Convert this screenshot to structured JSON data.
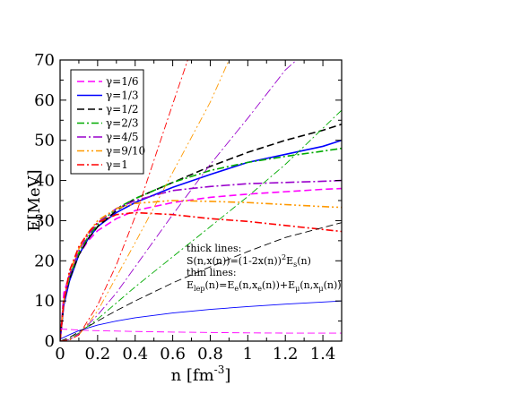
{
  "chart_data": {
    "type": "line",
    "xlabel": "n [fm",
    "xlabel_sup": "-3",
    "xlabel_end": "]",
    "ylabel": "E[MeV]",
    "xlim": [
      0,
      1.5
    ],
    "ylim": [
      0,
      70
    ],
    "xticks": [
      0,
      0.2,
      0.4,
      0.6,
      0.8,
      1,
      1.2,
      1.4
    ],
    "xtick_labels": [
      "0",
      "0.2",
      "0.4",
      "0.6",
      "0.8",
      "1",
      "1.2",
      "1.4"
    ],
    "yticks": [
      0,
      10,
      20,
      30,
      40,
      50,
      60,
      70
    ],
    "ytick_labels": [
      "0",
      "10",
      "20",
      "30",
      "40",
      "50",
      "60",
      "70"
    ],
    "grid": false,
    "legend_position": "top-left",
    "legend": [
      {
        "label": "γ=1/6",
        "color": "#ff00ff",
        "dash": "8,4"
      },
      {
        "label": "γ=1/3",
        "color": "#0000ff",
        "dash": ""
      },
      {
        "label": "γ=1/2",
        "color": "#000000",
        "dash": "8,4"
      },
      {
        "label": "γ=2/3",
        "color": "#00aa00",
        "dash": "8,3,2,3"
      },
      {
        "label": "γ=4/5",
        "color": "#9900cc",
        "dash": "10,3,2,3"
      },
      {
        "label": "γ=9/10",
        "color": "#ff9900",
        "dash": "8,3,2,3,2,3"
      },
      {
        "label": "γ=1",
        "color": "#ff0000",
        "dash": "8,3,2,3"
      }
    ],
    "annotation": {
      "line1": "thick lines:",
      "line2a": "S(n,x(n))=(1-2x(n))",
      "line2b": "2",
      "line2c": "E",
      "line2d": "s",
      "line2e": "(n)",
      "line3": "thin lines:",
      "line4a": "E",
      "line4b": "lep",
      "line4c": "(n)=E",
      "line4d": "e",
      "line4e": "(n,x",
      "line4f": "e",
      "line4g": "(n))+E",
      "line4h": "μ",
      "line4i": "(n,x",
      "line4j": "μ",
      "line4k": "(n))"
    },
    "series": [
      {
        "name": "γ=1/6",
        "kind": "thick",
        "color": "#ff00ff",
        "dash": "8,4",
        "x": [
          0,
          0.02,
          0.05,
          0.1,
          0.15,
          0.2,
          0.3,
          0.4,
          0.6,
          0.8,
          1.0,
          1.2,
          1.4,
          1.5
        ],
        "y": [
          0,
          12,
          16.5,
          21.5,
          25,
          27.5,
          30.5,
          32.5,
          34.5,
          35.8,
          36.6,
          37.2,
          37.8,
          38
        ]
      },
      {
        "name": "γ=1/3",
        "kind": "thick",
        "color": "#0000ff",
        "dash": "",
        "x": [
          0,
          0.02,
          0.05,
          0.1,
          0.15,
          0.2,
          0.3,
          0.4,
          0.6,
          0.8,
          1.0,
          1.2,
          1.4,
          1.5
        ],
        "y": [
          0,
          9,
          15,
          21.5,
          25.5,
          28.5,
          32,
          34.5,
          38.3,
          41.5,
          44.5,
          46.5,
          48.5,
          50
        ]
      },
      {
        "name": "γ=1/2",
        "kind": "thick",
        "color": "#000000",
        "dash": "8,4",
        "x": [
          0,
          0.02,
          0.05,
          0.1,
          0.15,
          0.2,
          0.3,
          0.4,
          0.6,
          0.8,
          1.0,
          1.2,
          1.4,
          1.5
        ],
        "y": [
          0,
          10,
          15.5,
          21.5,
          25.5,
          28.5,
          32.5,
          35.5,
          39.5,
          43.5,
          47,
          50,
          52.5,
          54
        ]
      },
      {
        "name": "γ=2/3",
        "kind": "thick",
        "color": "#00aa00",
        "dash": "8,3,2,3",
        "x": [
          0,
          0.02,
          0.05,
          0.1,
          0.15,
          0.2,
          0.3,
          0.4,
          0.6,
          0.8,
          1.0,
          1.2,
          1.4,
          1.5
        ],
        "y": [
          0,
          10,
          16,
          22,
          26,
          29,
          33,
          35.5,
          39.5,
          42.5,
          44.5,
          46,
          47.3,
          48
        ]
      },
      {
        "name": "γ=4/5",
        "kind": "thick",
        "color": "#9900cc",
        "dash": "10,3,2,3",
        "x": [
          0,
          0.02,
          0.05,
          0.1,
          0.15,
          0.2,
          0.3,
          0.4,
          0.6,
          0.8,
          1.0,
          1.2,
          1.4,
          1.5
        ],
        "y": [
          0,
          10,
          16.5,
          22.5,
          26.5,
          29.5,
          33,
          35,
          37.5,
          38.5,
          39.2,
          39.5,
          39.8,
          40
        ]
      },
      {
        "name": "γ=9/10",
        "kind": "thick",
        "color": "#ff9900",
        "dash": "8,3,2,3,2,3",
        "x": [
          0,
          0.02,
          0.05,
          0.1,
          0.15,
          0.2,
          0.3,
          0.4,
          0.6,
          0.8,
          1.0,
          1.2,
          1.4,
          1.5
        ],
        "y": [
          0,
          10,
          17,
          23,
          27,
          30,
          33,
          34.3,
          35,
          34.8,
          34.5,
          34,
          33.5,
          33.3
        ]
      },
      {
        "name": "γ=1",
        "kind": "thick",
        "color": "#ff0000",
        "dash": "8,3,2,3",
        "x": [
          0,
          0.02,
          0.05,
          0.1,
          0.15,
          0.2,
          0.3,
          0.4,
          0.6,
          0.8,
          1.0,
          1.2,
          1.4,
          1.5
        ],
        "y": [
          0,
          10,
          17.5,
          23.5,
          27,
          29.5,
          31.5,
          32,
          31.5,
          30.5,
          29.8,
          28.8,
          27.8,
          27.3
        ]
      },
      {
        "name": "γ=1/6",
        "kind": "thin",
        "color": "#ff00ff",
        "dash": "8,4",
        "x": [
          0,
          0.05,
          0.1,
          0.2,
          0.4,
          0.6,
          0.8,
          1.0,
          1.2,
          1.5
        ],
        "y": [
          3.0,
          2.9,
          2.75,
          2.6,
          2.4,
          2.25,
          2.15,
          2.05,
          2.0,
          2.0
        ]
      },
      {
        "name": "γ=1/3",
        "kind": "thin",
        "color": "#0000ff",
        "dash": "",
        "x": [
          0,
          0.05,
          0.1,
          0.2,
          0.3,
          0.4,
          0.6,
          0.8,
          1.0,
          1.2,
          1.5
        ],
        "y": [
          0.5,
          1.6,
          2.6,
          4.0,
          5.0,
          5.8,
          7.0,
          7.9,
          8.6,
          9.2,
          10.0
        ]
      },
      {
        "name": "γ=1/2",
        "kind": "thin",
        "color": "#000000",
        "dash": "8,4",
        "x": [
          0,
          0.05,
          0.1,
          0.2,
          0.3,
          0.4,
          0.6,
          0.8,
          1.0,
          1.2,
          1.5
        ],
        "y": [
          0,
          0.9,
          2.3,
          5.0,
          7.6,
          10.0,
          14.5,
          18.5,
          22.3,
          25.8,
          29.5
        ]
      },
      {
        "name": "γ=2/3",
        "kind": "thin",
        "color": "#00aa00",
        "dash": "8,3,2,3",
        "x": [
          0,
          0.05,
          0.1,
          0.2,
          0.3,
          0.4,
          0.6,
          0.8,
          1.0,
          1.2,
          1.5
        ],
        "y": [
          0,
          0.5,
          2.0,
          5.5,
          9.5,
          13.5,
          21.0,
          28.5,
          36.0,
          44.0,
          57.5
        ]
      },
      {
        "name": "γ=4/5",
        "kind": "thin",
        "color": "#9900cc",
        "dash": "10,3,2,3",
        "x": [
          0,
          0.05,
          0.1,
          0.2,
          0.3,
          0.4,
          0.6,
          0.8,
          1.0,
          1.2,
          1.26
        ],
        "y": [
          0,
          0.4,
          1.8,
          6.5,
          12.0,
          18.5,
          31.5,
          44.0,
          55.5,
          67.5,
          70
        ]
      },
      {
        "name": "γ=9/10",
        "kind": "thin",
        "color": "#ff9900",
        "dash": "8,3,2,3,2,3",
        "x": [
          0,
          0.05,
          0.1,
          0.2,
          0.3,
          0.4,
          0.6,
          0.8,
          0.9
        ],
        "y": [
          0,
          0.3,
          1.5,
          7.5,
          16.0,
          24.5,
          42.0,
          59.5,
          70
        ]
      },
      {
        "name": "γ=1",
        "kind": "thin",
        "color": "#ff0000",
        "dash": "8,3,2,3",
        "x": [
          0,
          0.05,
          0.1,
          0.2,
          0.3,
          0.4,
          0.5,
          0.6,
          0.68
        ],
        "y": [
          0,
          0.3,
          1.5,
          9.0,
          19.0,
          31.0,
          45.0,
          59.0,
          70
        ]
      }
    ]
  }
}
